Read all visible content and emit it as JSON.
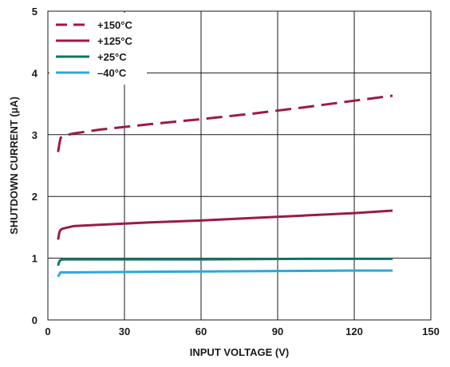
{
  "chart_data": {
    "type": "line",
    "xlabel": "INPUT VOLTAGE (V)",
    "ylabel": "SHUTDOWN CURRENT (µA)",
    "xlim": [
      0,
      150
    ],
    "ylim": [
      0,
      5
    ],
    "xticks": [
      0,
      30,
      60,
      90,
      120,
      150
    ],
    "yticks": [
      0,
      1,
      2,
      3,
      4,
      5
    ],
    "grid": true,
    "legend_position": "top-left",
    "series": [
      {
        "name": "+150°C",
        "color": "#9b1b45",
        "dash": "dashed",
        "x": [
          4,
          4.5,
          5,
          6,
          7,
          10,
          20,
          40,
          60,
          80,
          100,
          120,
          135
        ],
        "y": [
          2.72,
          2.85,
          2.95,
          2.98,
          2.99,
          3.02,
          3.08,
          3.17,
          3.25,
          3.34,
          3.44,
          3.55,
          3.63
        ]
      },
      {
        "name": "+125°C",
        "color": "#9b1b45",
        "dash": "solid",
        "x": [
          4,
          4.5,
          5,
          6,
          8,
          10,
          20,
          40,
          60,
          80,
          100,
          120,
          135
        ],
        "y": [
          1.3,
          1.42,
          1.46,
          1.48,
          1.5,
          1.52,
          1.54,
          1.58,
          1.61,
          1.65,
          1.69,
          1.73,
          1.77
        ]
      },
      {
        "name": "+25°C",
        "color": "#0f7565",
        "dash": "solid",
        "x": [
          4,
          4.5,
          5,
          6,
          8,
          20,
          60,
          100,
          135
        ],
        "y": [
          0.88,
          0.95,
          0.97,
          0.98,
          0.98,
          0.98,
          0.98,
          0.99,
          0.99
        ]
      },
      {
        "name": "–40°C",
        "color": "#2ca8dc",
        "dash": "solid",
        "x": [
          4,
          4.5,
          5,
          6,
          10,
          40,
          80,
          120,
          135
        ],
        "y": [
          0.7,
          0.74,
          0.77,
          0.77,
          0.77,
          0.78,
          0.79,
          0.8,
          0.8
        ]
      }
    ]
  }
}
